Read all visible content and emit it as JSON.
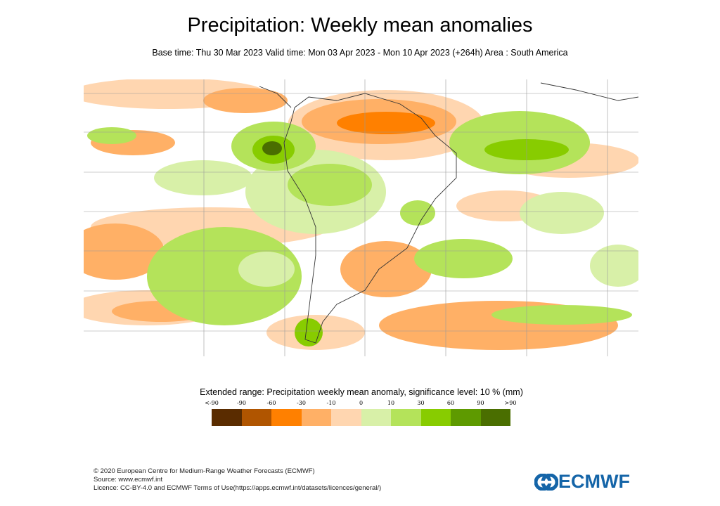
{
  "title": "Precipitation: Weekly mean anomalies",
  "subtitle": "Base time: Thu 30 Mar 2023 Valid time: Mon 03 Apr 2023 - Mon 10 Apr 2023 (+264h) Area : South America",
  "legend": {
    "title": "Extended range: Precipitation weekly mean anomaly, significance level: 10 % (mm)",
    "ticks": [
      "<-90",
      "-90",
      "-60",
      "-30",
      "-10",
      "0",
      "10",
      "30",
      "60",
      "90",
      ">90"
    ],
    "colors": [
      "#5a2c00",
      "#b05500",
      "#ff8000",
      "#ffb066",
      "#ffd6b0",
      "#d8f0a8",
      "#b4e35a",
      "#88cc00",
      "#5e9a00",
      "#4a6e00"
    ]
  },
  "footer": {
    "line1": "© 2020 European Centre for Medium-Range Weather Forecasts (ECMWF)",
    "line2": "Source: www.ecmwf.int",
    "line3": "Licence: CC-BY-4.0 and ECMWF Terms of Use(https://apps.ecmwf.int/datasets/licences/general/)"
  },
  "logo": {
    "text": "ECMWF",
    "color": "#1565a8"
  }
}
